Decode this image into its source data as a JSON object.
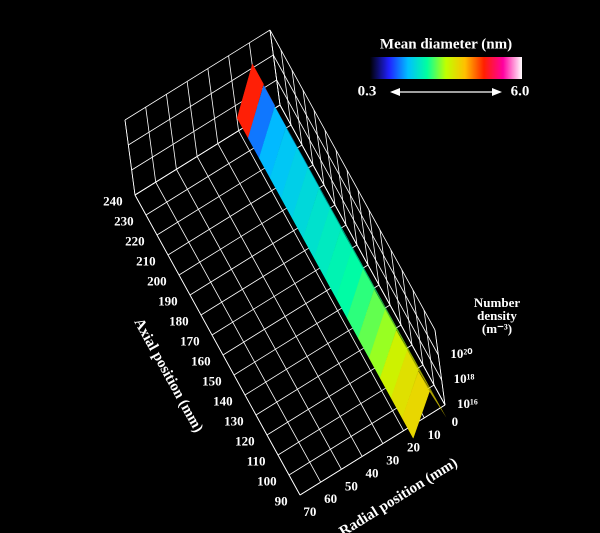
{
  "chart_data": {
    "type": "surface3d",
    "colorbar_title": "Mean diameter (nm)",
    "colormap": [
      "#000000",
      "#2020ff",
      "#00c0ff",
      "#00ffa0",
      "#c0ff00",
      "#ffc000",
      "#ff2000",
      "#ff00a0",
      "#ffffff"
    ],
    "clim": [
      0.3,
      6.0
    ],
    "colorbar_ticks": [
      0.3,
      {
        "value": 6,
        "label": "6.0"
      }
    ],
    "x_label": "Axial position (mm)",
    "y_label": "Radial position (mm)",
    "z_label": [
      "Number",
      "density",
      "(m⁻³)"
    ],
    "xlim": [
      90,
      240
    ],
    "xticks": [
      90,
      100,
      110,
      120,
      130,
      140,
      150,
      160,
      170,
      180,
      190,
      200,
      210,
      220,
      230,
      240
    ],
    "ylim": [
      0,
      70
    ],
    "yticks": [
      0,
      10,
      20,
      30,
      40,
      50,
      60,
      70
    ],
    "zlog": true,
    "zlim": [
      1e+16,
      1e+22
    ],
    "zticks": [
      {
        "value": 1e+16,
        "label": "10¹⁶"
      },
      {
        "value": 1e+18,
        "label": "10¹⁸"
      },
      {
        "value": 1e+20,
        "label": "10²⁰"
      }
    ],
    "grid": true,
    "x": [
      90,
      100,
      110,
      120,
      130,
      140,
      150,
      160,
      170,
      180,
      190,
      200,
      210,
      220,
      230,
      240
    ],
    "density": [
      5e+18,
      6e+18,
      6e+18,
      7e+18,
      7e+18,
      8e+18,
      8e+18,
      8e+18,
      9e+18,
      9e+18,
      1e+19,
      1e+19,
      1e+19,
      1.2e+19,
      1.5e+19,
      2e+19
    ],
    "diameter": [
      3.6,
      3.5,
      3.3,
      3.0,
      2.8,
      2.6,
      2.4,
      2.3,
      2.2,
      2.1,
      2.0,
      1.9,
      1.8,
      1.7,
      1.4,
      4.6
    ]
  }
}
